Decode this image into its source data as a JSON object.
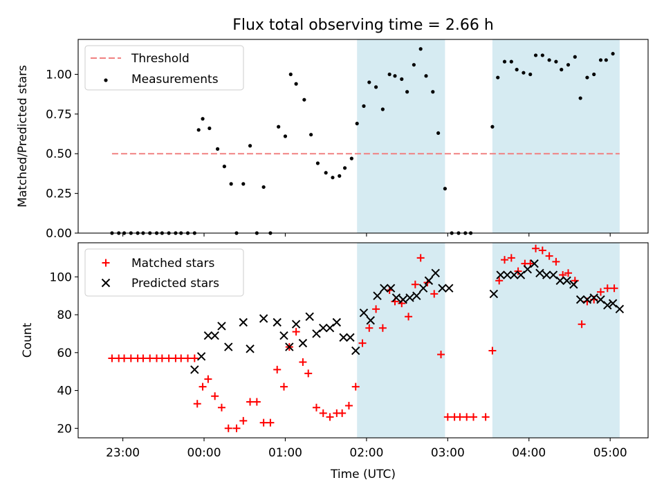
{
  "figure": {
    "title": "Flux total observing time = 2.66 h"
  },
  "chart_data": [
    {
      "type": "scatter",
      "panel": "top",
      "xlabel": "",
      "ylabel": "Matched/Predicted stars",
      "ylim": [
        0,
        1.22
      ],
      "yticks": [
        "0.00",
        "0.25",
        "0.50",
        "0.75",
        "1.00"
      ],
      "ytick_values": [
        0,
        0.25,
        0.5,
        0.75,
        1.0
      ],
      "legend_position": "top-left",
      "threshold": {
        "name": "Threshold",
        "value": 0.5,
        "x_range": [
          "22:52",
          "05:07"
        ],
        "color": "#f08080",
        "style": "dashed"
      },
      "shaded_intervals": [
        [
          "01:53",
          "02:58"
        ],
        [
          "03:33",
          "05:07"
        ]
      ],
      "series": [
        {
          "name": "Measurements",
          "marker": "dot",
          "color": "#000000",
          "points": [
            [
              "22:52",
              0.0
            ],
            [
              "22:57",
              0.0
            ],
            [
              "23:01",
              0.0
            ],
            [
              "23:06",
              0.0
            ],
            [
              "23:11",
              0.0
            ],
            [
              "23:15",
              0.0
            ],
            [
              "23:20",
              0.0
            ],
            [
              "23:25",
              0.0
            ],
            [
              "23:29",
              0.0
            ],
            [
              "23:34",
              0.0
            ],
            [
              "23:39",
              0.0
            ],
            [
              "23:43",
              0.0
            ],
            [
              "23:48",
              0.0
            ],
            [
              "23:53",
              0.0
            ],
            [
              "23:56",
              0.65
            ],
            [
              "23:59",
              0.72
            ],
            [
              "00:04",
              0.66
            ],
            [
              "00:10",
              0.53
            ],
            [
              "00:15",
              0.42
            ],
            [
              "00:20",
              0.31
            ],
            [
              "00:24",
              0.0
            ],
            [
              "00:29",
              0.31
            ],
            [
              "00:34",
              0.55
            ],
            [
              "00:39",
              0.0
            ],
            [
              "00:44",
              0.29
            ],
            [
              "00:49",
              0.0
            ],
            [
              "00:55",
              0.67
            ],
            [
              "01:00",
              0.61
            ],
            [
              "01:04",
              1.0
            ],
            [
              "01:08",
              0.94
            ],
            [
              "01:14",
              0.84
            ],
            [
              "01:19",
              0.62
            ],
            [
              "01:24",
              0.44
            ],
            [
              "01:30",
              0.38
            ],
            [
              "01:35",
              0.35
            ],
            [
              "01:40",
              0.36
            ],
            [
              "01:44",
              0.41
            ],
            [
              "01:49",
              0.47
            ],
            [
              "01:53",
              0.69
            ],
            [
              "01:58",
              0.8
            ],
            [
              "02:02",
              0.95
            ],
            [
              "02:07",
              0.92
            ],
            [
              "02:12",
              0.78
            ],
            [
              "02:17",
              1.0
            ],
            [
              "02:21",
              0.99
            ],
            [
              "02:26",
              0.97
            ],
            [
              "02:30",
              0.89
            ],
            [
              "02:35",
              1.06
            ],
            [
              "02:40",
              1.16
            ],
            [
              "02:44",
              0.99
            ],
            [
              "02:49",
              0.89
            ],
            [
              "02:53",
              0.63
            ],
            [
              "02:58",
              0.28
            ],
            [
              "03:03",
              0.0
            ],
            [
              "03:08",
              0.0
            ],
            [
              "03:13",
              0.0
            ],
            [
              "03:17",
              0.0
            ],
            [
              "03:33",
              0.67
            ],
            [
              "03:37",
              0.98
            ],
            [
              "03:42",
              1.08
            ],
            [
              "03:47",
              1.08
            ],
            [
              "03:51",
              1.03
            ],
            [
              "03:56",
              1.01
            ],
            [
              "04:01",
              1.0
            ],
            [
              "04:05",
              1.12
            ],
            [
              "04:10",
              1.12
            ],
            [
              "04:15",
              1.09
            ],
            [
              "04:20",
              1.08
            ],
            [
              "04:24",
              1.03
            ],
            [
              "04:29",
              1.06
            ],
            [
              "04:34",
              1.11
            ],
            [
              "04:38",
              0.85
            ],
            [
              "04:43",
              0.98
            ],
            [
              "04:48",
              1.0
            ],
            [
              "04:53",
              1.09
            ],
            [
              "04:57",
              1.09
            ],
            [
              "05:02",
              1.13
            ]
          ]
        }
      ]
    },
    {
      "type": "scatter",
      "panel": "bottom",
      "xlabel": "Time (UTC)",
      "ylabel": "Count",
      "xlim": [
        "22:27",
        "05:28"
      ],
      "xticks": [
        "23:00",
        "00:00",
        "01:00",
        "02:00",
        "03:00",
        "04:00",
        "05:00"
      ],
      "ylim": [
        15,
        118
      ],
      "yticks": [
        "20",
        "40",
        "60",
        "80",
        "100"
      ],
      "ytick_values": [
        20,
        40,
        60,
        80,
        100
      ],
      "legend_position": "top-left",
      "shaded_intervals": [
        [
          "01:53",
          "02:58"
        ],
        [
          "03:33",
          "05:07"
        ]
      ],
      "series": [
        {
          "name": "Matched stars",
          "marker": "plus",
          "color": "#ff0000",
          "points": [
            [
              "22:52",
              57
            ],
            [
              "22:57",
              57
            ],
            [
              "23:01",
              57
            ],
            [
              "23:06",
              57
            ],
            [
              "23:11",
              57
            ],
            [
              "23:15",
              57
            ],
            [
              "23:20",
              57
            ],
            [
              "23:25",
              57
            ],
            [
              "23:29",
              57
            ],
            [
              "23:34",
              57
            ],
            [
              "23:39",
              57
            ],
            [
              "23:43",
              57
            ],
            [
              "23:48",
              57
            ],
            [
              "23:53",
              57
            ],
            [
              "23:55",
              33
            ],
            [
              "23:59",
              42
            ],
            [
              "00:03",
              46
            ],
            [
              "00:08",
              37
            ],
            [
              "00:13",
              31
            ],
            [
              "00:18",
              20
            ],
            [
              "00:24",
              20
            ],
            [
              "00:29",
              24
            ],
            [
              "00:34",
              34
            ],
            [
              "00:39",
              34
            ],
            [
              "00:44",
              23
            ],
            [
              "00:49",
              23
            ],
            [
              "00:54",
              51
            ],
            [
              "00:59",
              42
            ],
            [
              "01:03",
              63
            ],
            [
              "01:08",
              71
            ],
            [
              "01:13",
              55
            ],
            [
              "01:17",
              49
            ],
            [
              "01:23",
              31
            ],
            [
              "01:28",
              28
            ],
            [
              "01:33",
              26
            ],
            [
              "01:38",
              28
            ],
            [
              "01:42",
              28
            ],
            [
              "01:47",
              32
            ],
            [
              "01:52",
              42
            ],
            [
              "01:57",
              65
            ],
            [
              "02:02",
              73
            ],
            [
              "02:07",
              83
            ],
            [
              "02:12",
              73
            ],
            [
              "02:17",
              93
            ],
            [
              "02:21",
              87
            ],
            [
              "02:26",
              86
            ],
            [
              "02:31",
              79
            ],
            [
              "02:36",
              96
            ],
            [
              "02:40",
              110
            ],
            [
              "02:45",
              97
            ],
            [
              "02:50",
              91
            ],
            [
              "02:55",
              59
            ],
            [
              "03:00",
              26
            ],
            [
              "03:05",
              26
            ],
            [
              "03:09",
              26
            ],
            [
              "03:14",
              26
            ],
            [
              "03:19",
              26
            ],
            [
              "03:28",
              26
            ],
            [
              "03:33",
              61
            ],
            [
              "03:38",
              98
            ],
            [
              "03:42",
              109
            ],
            [
              "03:47",
              110
            ],
            [
              "03:52",
              103
            ],
            [
              "03:57",
              107
            ],
            [
              "04:01",
              107
            ],
            [
              "04:05",
              115
            ],
            [
              "04:10",
              114
            ],
            [
              "04:15",
              111
            ],
            [
              "04:20",
              108
            ],
            [
              "04:25",
              101
            ],
            [
              "04:29",
              102
            ],
            [
              "04:34",
              98
            ],
            [
              "04:39",
              75
            ],
            [
              "04:43",
              87
            ],
            [
              "04:48",
              88
            ],
            [
              "04:53",
              92
            ],
            [
              "04:58",
              94
            ],
            [
              "05:03",
              94
            ]
          ]
        },
        {
          "name": "Predicted stars",
          "marker": "x",
          "color": "#000000",
          "points": [
            [
              "23:53",
              51
            ],
            [
              "23:58",
              58
            ],
            [
              "00:03",
              69
            ],
            [
              "00:08",
              69
            ],
            [
              "00:13",
              74
            ],
            [
              "00:18",
              63
            ],
            [
              "00:29",
              76
            ],
            [
              "00:34",
              62
            ],
            [
              "00:44",
              78
            ],
            [
              "00:54",
              76
            ],
            [
              "00:59",
              69
            ],
            [
              "01:03",
              63
            ],
            [
              "01:08",
              75
            ],
            [
              "01:13",
              65
            ],
            [
              "01:18",
              79
            ],
            [
              "01:23",
              70
            ],
            [
              "01:28",
              73
            ],
            [
              "01:33",
              73
            ],
            [
              "01:38",
              76
            ],
            [
              "01:43",
              68
            ],
            [
              "01:48",
              68
            ],
            [
              "01:52",
              61
            ],
            [
              "01:58",
              81
            ],
            [
              "02:03",
              77
            ],
            [
              "02:08",
              90
            ],
            [
              "02:13",
              94
            ],
            [
              "02:18",
              94
            ],
            [
              "02:22",
              89
            ],
            [
              "02:27",
              88
            ],
            [
              "02:32",
              89
            ],
            [
              "02:37",
              90
            ],
            [
              "02:42",
              94
            ],
            [
              "02:46",
              98
            ],
            [
              "02:51",
              102
            ],
            [
              "02:56",
              94
            ],
            [
              "03:01",
              94
            ],
            [
              "03:34",
              91
            ],
            [
              "03:39",
              101
            ],
            [
              "03:44",
              101
            ],
            [
              "03:49",
              101
            ],
            [
              "03:54",
              101
            ],
            [
              "03:59",
              104
            ],
            [
              "04:04",
              107
            ],
            [
              "04:08",
              102
            ],
            [
              "04:13",
              101
            ],
            [
              "04:18",
              101
            ],
            [
              "04:23",
              98
            ],
            [
              "04:28",
              98
            ],
            [
              "04:33",
              96
            ],
            [
              "04:38",
              88
            ],
            [
              "04:43",
              88
            ],
            [
              "04:48",
              89
            ],
            [
              "04:53",
              88
            ],
            [
              "04:58",
              85
            ],
            [
              "05:02",
              86
            ],
            [
              "05:07",
              83
            ]
          ]
        }
      ]
    }
  ],
  "colors": {
    "shade": "#add8e6",
    "shade_opacity": 0.5
  }
}
